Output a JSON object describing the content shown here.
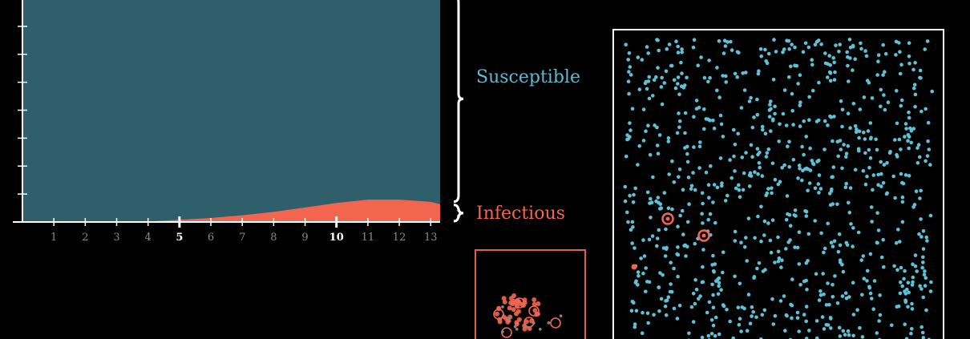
{
  "colors": {
    "background": "#000000",
    "susceptible": "#2e5f6a",
    "infectious": "#f26650",
    "dot_susceptible": "#5fc0d6",
    "axis": "#ffffff",
    "tick_label": "#8a8a8a",
    "tick_label_highlight": "#ffffff",
    "box_border": "#ffffff",
    "small_box_border": "#e06050"
  },
  "labels": {
    "susceptible": "Susceptible",
    "infectious": "Infectious"
  },
  "chart_data": {
    "type": "area",
    "stacked": true,
    "normalized": true,
    "xlim": [
      0,
      13.3
    ],
    "ylim": [
      0,
      1
    ],
    "x_ticks": [
      "1",
      "2",
      "3",
      "4",
      "5",
      "6",
      "7",
      "8",
      "9",
      "10",
      "11",
      "12",
      "13"
    ],
    "highlighted_ticks": [
      "5",
      "10"
    ],
    "y_tick_count": 8,
    "x": [
      0,
      1,
      2,
      3,
      4,
      5,
      6,
      7,
      8,
      9,
      10,
      11,
      12,
      13,
      13.3
    ],
    "series": [
      {
        "name": "Infectious",
        "color": "#f26650",
        "values": [
          0,
          0,
          0,
          0,
          0.002,
          0.01,
          0.018,
          0.03,
          0.045,
          0.065,
          0.085,
          0.1,
          0.1,
          0.09,
          0.08
        ]
      },
      {
        "name": "Susceptible",
        "color": "#2e5f6a",
        "values": [
          1,
          1,
          1,
          1,
          0.998,
          0.99,
          0.982,
          0.97,
          0.955,
          0.935,
          0.915,
          0.9,
          0.9,
          0.91,
          0.92
        ]
      }
    ],
    "grid": false,
    "legend": "right, curly braces"
  }
}
